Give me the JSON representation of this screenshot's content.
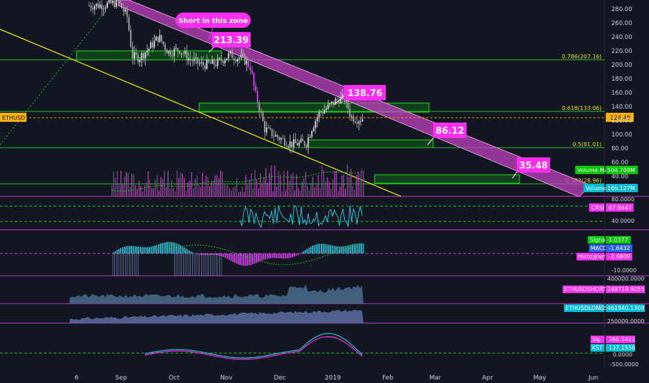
{
  "chart_data": {
    "type": "candlestick",
    "symbol": "ETHUSD",
    "price_axis": {
      "ticks": [
        "280.00",
        "260.00",
        "240.00",
        "220.00",
        "200.00",
        "180.00",
        "160.00",
        "140.00",
        "120.00",
        "100.00",
        "80.00",
        "60.00",
        "40.00"
      ],
      "last_price": "124.45",
      "ylim": [
        14,
        300
      ]
    },
    "x_ticks": [
      "6",
      "Sep",
      "Oct",
      "Nov",
      "Dec",
      "2019",
      "Feb",
      "Mar",
      "Apr",
      "May",
      "Jun"
    ],
    "trend_line_callouts": [
      "213.39",
      "138.76",
      "86.12",
      "35.48"
    ],
    "zone_note": "Short in this zone",
    "fib_levels": [
      {
        "label": "0.786(207.16)",
        "value": 207.16
      },
      {
        "label": "0.618(133.06)",
        "value": 133.06
      },
      {
        "label": "0.5(81.01)",
        "value": 81.01
      },
      {
        "label": "0.382(28.96)",
        "value": 28.96
      }
    ],
    "volume": {
      "ma_label": "Volume MA",
      "ma_value": "504.709M",
      "label": "Volume",
      "value": "166.127M"
    },
    "crsi": {
      "label": "CRSI",
      "value": "67.9447",
      "ticks": [
        "80.0000",
        "40.0000"
      ]
    },
    "macd": {
      "signal_label": "Signal",
      "signal_value": "1.0377",
      "macd_label": "MACD",
      "macd_value": "-1.6432",
      "hist_label": "Histogram",
      "hist_value": "-2.6809",
      "ticks": [
        "-10.0000"
      ]
    },
    "shorts": {
      "label": "ETHUSDSHORTS",
      "value": "248719.9055",
      "ticks": [
        "400000.0000"
      ]
    },
    "longs": {
      "label": "ETHUSDLONGS",
      "value": "461940.1308",
      "ticks": [
        "250000.0000"
      ]
    },
    "kst": {
      "sig_label": "Sig",
      "sig_value": "266.5421",
      "kst_label": "KST",
      "kst_value": "137.1556",
      "ticks": [
        "0.0000",
        "-500.0000"
      ]
    },
    "colors": {
      "background": "#131722",
      "candle": "#dcdcdc",
      "candle_down": "#e040fb",
      "channel": "#c040c0",
      "fib": "#22c522",
      "zone": "#0f8f0f",
      "callout": "#ff2ef1",
      "support": "#e6e600",
      "axis_text": "#cfd2d8"
    }
  }
}
